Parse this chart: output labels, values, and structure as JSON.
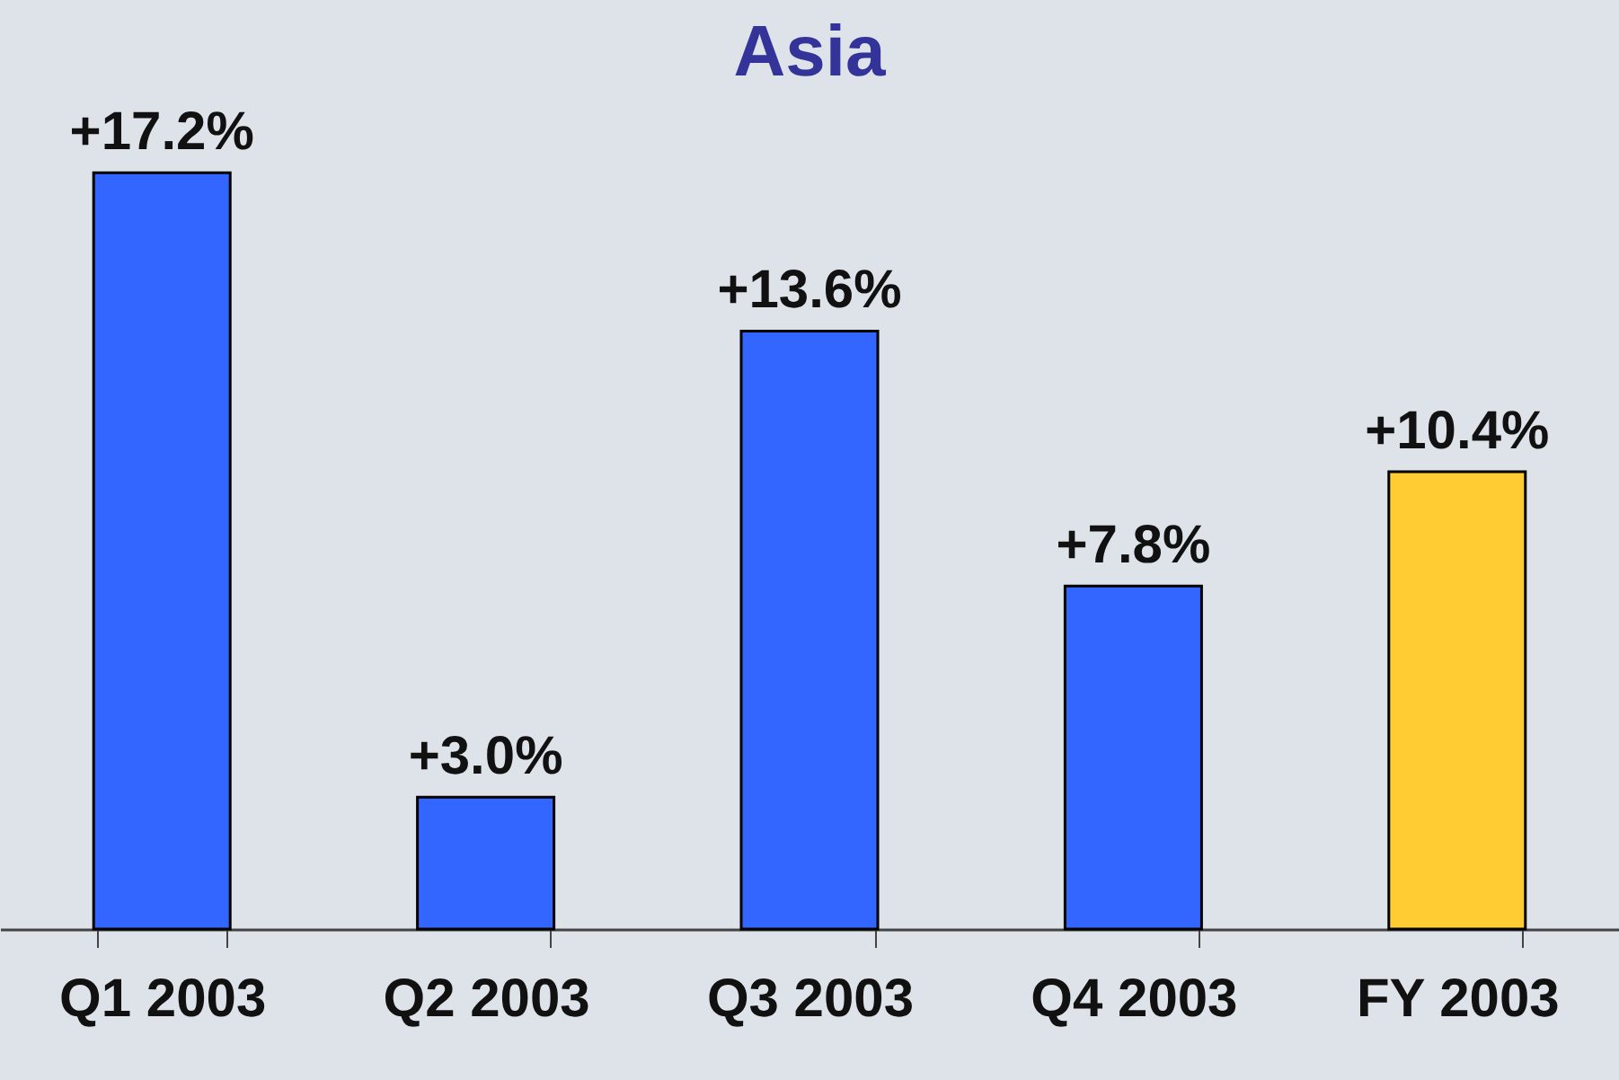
{
  "chart_data": {
    "type": "bar",
    "title": "Asia",
    "categories": [
      "Q1 2003",
      "Q2 2003",
      "Q3 2003",
      "Q4 2003",
      "FY 2003"
    ],
    "values": [
      17.2,
      3.0,
      13.6,
      7.8,
      10.4
    ],
    "colors": [
      "#3366ff",
      "#3366ff",
      "#3366ff",
      "#3366ff",
      "#ffcc33"
    ],
    "value_labels": [
      "+17.2%",
      "+3.0%",
      "+13.6%",
      "+7.8%",
      "+10.4%"
    ],
    "grid": false
  }
}
